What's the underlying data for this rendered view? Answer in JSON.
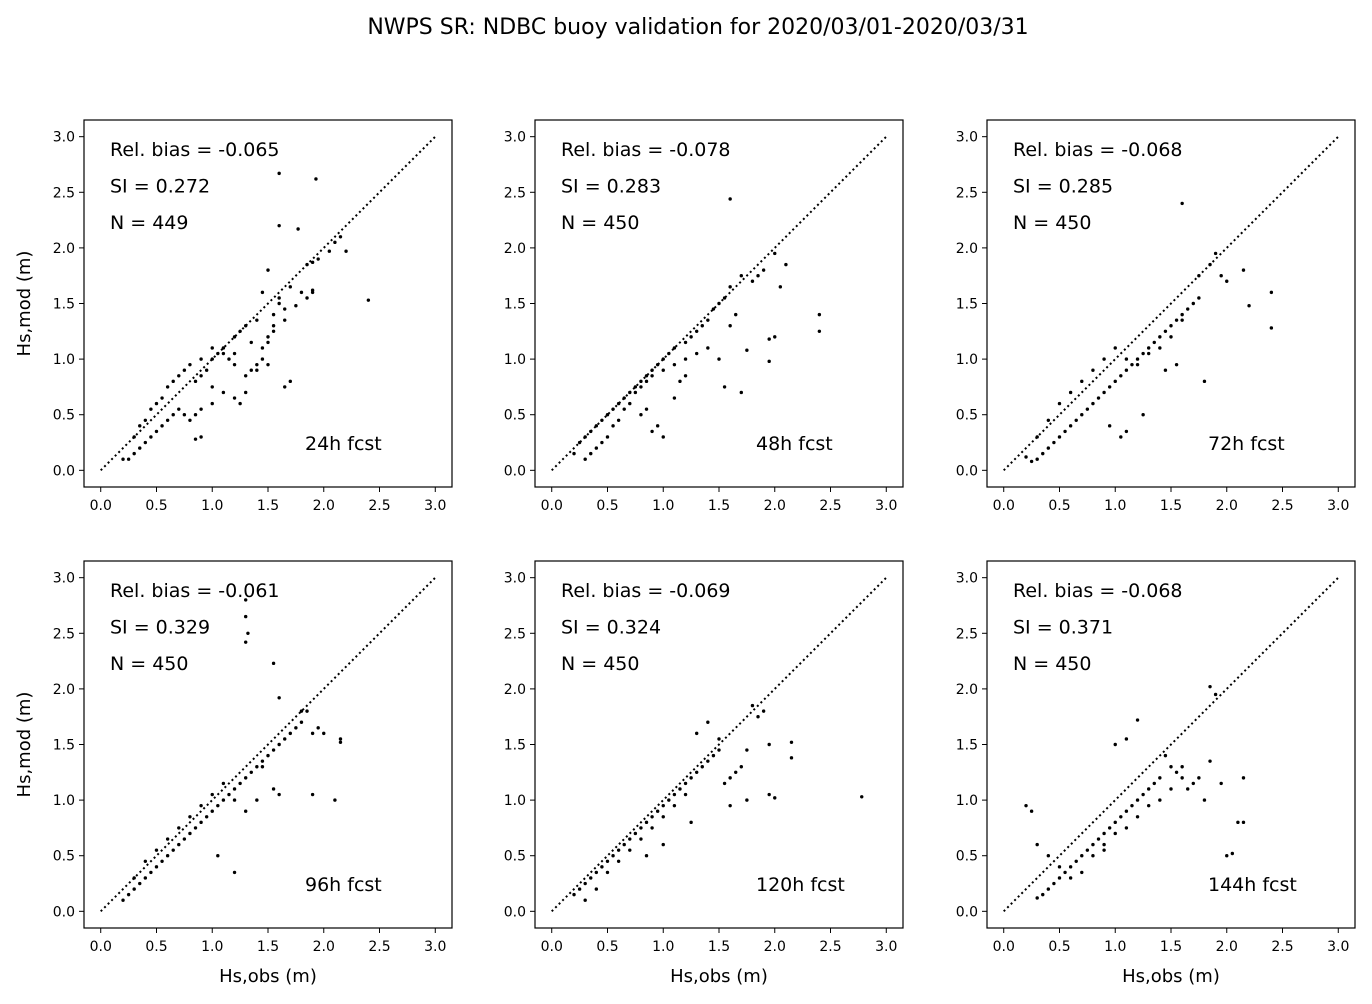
{
  "suptitle": "NWPS SR: NDBC buoy validation for 2020/03/01-2020/03/31",
  "chart_data": [
    {
      "type": "scatter",
      "fcst": "24h fcst",
      "stats": [
        "Rel. bias = -0.065",
        "SI =  0.272",
        "N = 449"
      ],
      "xlabel": "",
      "ylabel": "Hs,mod (m)",
      "xlim": [
        -0.15,
        3.15
      ],
      "ylim": [
        -0.15,
        3.15
      ],
      "ticks": [
        0,
        0.5,
        1,
        1.5,
        2,
        2.5,
        3
      ],
      "ticklabels": [
        "0.0",
        "0.5",
        "1.0",
        "1.5",
        "2.0",
        "2.5",
        "3.0"
      ],
      "x": [
        1.6,
        1.93,
        1.6,
        1.77,
        2.4,
        2.2,
        2.15,
        2.1,
        2.05,
        1.95,
        1.9,
        1.85,
        1.9,
        1.7,
        1.5,
        1.45,
        1.6,
        1.65,
        1.55,
        1.4,
        1.3,
        1.25,
        1.2,
        1.65,
        1.55,
        1.5,
        1.45,
        1.35,
        1.2,
        1.15,
        1.4,
        1.35,
        1.1,
        1.05,
        1.2,
        1.3,
        1.0,
        0.95,
        0.9,
        0.85,
        1.0,
        1.1,
        1.25,
        1.0,
        0.9,
        0.85,
        0.8,
        0.75,
        0.7,
        0.65,
        0.6,
        0.55,
        0.5,
        0.45,
        0.4,
        0.35,
        0.3,
        0.25,
        0.2,
        0.3,
        0.35,
        0.4,
        0.45,
        0.5,
        0.55,
        0.6,
        0.65,
        0.7,
        0.75,
        0.8,
        0.9,
        1.0,
        1.1,
        0.9,
        0.85,
        1.65,
        1.7,
        1.3,
        1.2,
        1.55,
        1.5,
        1.45,
        1.5,
        1.4,
        1.6,
        1.8,
        1.85,
        1.9,
        1.75
      ],
      "y": [
        2.67,
        2.62,
        2.2,
        2.17,
        1.53,
        1.97,
        2.1,
        2.05,
        1.97,
        1.9,
        1.87,
        1.85,
        1.6,
        1.65,
        1.8,
        1.6,
        1.55,
        1.45,
        1.4,
        1.35,
        1.3,
        1.25,
        1.2,
        1.35,
        1.3,
        1.2,
        1.1,
        1.15,
        1.05,
        1.0,
        0.95,
        0.9,
        1.1,
        1.05,
        0.95,
        0.85,
        1.0,
        0.9,
        0.85,
        0.8,
        0.75,
        0.7,
        0.6,
        0.6,
        0.55,
        0.5,
        0.45,
        0.5,
        0.55,
        0.5,
        0.45,
        0.4,
        0.35,
        0.3,
        0.25,
        0.2,
        0.15,
        0.1,
        0.1,
        0.3,
        0.4,
        0.45,
        0.55,
        0.6,
        0.65,
        0.75,
        0.8,
        0.85,
        0.9,
        0.95,
        1.0,
        1.1,
        1.05,
        0.3,
        0.28,
        0.75,
        0.8,
        0.7,
        0.65,
        1.25,
        1.15,
        1.0,
        0.95,
        0.9,
        1.5,
        1.6,
        1.55,
        1.62,
        1.48
      ]
    },
    {
      "type": "scatter",
      "fcst": "48h fcst",
      "stats": [
        "Rel. bias = -0.078",
        "SI =  0.283",
        "N = 450"
      ],
      "xlabel": "",
      "ylabel": "",
      "xlim": [
        -0.15,
        3.15
      ],
      "ylim": [
        -0.15,
        3.15
      ],
      "ticks": [
        0,
        0.5,
        1,
        1.5,
        2,
        2.5,
        3
      ],
      "ticklabels": [
        "0.0",
        "0.5",
        "1.0",
        "1.5",
        "2.0",
        "2.5",
        "3.0"
      ],
      "x": [
        1.6,
        2.4,
        2.4,
        2.0,
        1.95,
        2.1,
        1.9,
        1.85,
        2.05,
        1.8,
        1.7,
        1.6,
        1.55,
        1.5,
        1.45,
        1.65,
        1.6,
        1.4,
        1.35,
        1.3,
        1.25,
        1.2,
        1.1,
        1.05,
        1.0,
        0.95,
        0.9,
        0.85,
        0.8,
        0.75,
        0.7,
        0.65,
        0.6,
        0.55,
        0.5,
        0.45,
        0.4,
        0.35,
        0.3,
        0.25,
        0.2,
        0.3,
        0.35,
        0.4,
        0.45,
        0.5,
        0.55,
        0.6,
        0.65,
        0.7,
        0.75,
        0.8,
        0.85,
        0.9,
        1.0,
        1.1,
        1.2,
        1.3,
        1.4,
        1.5,
        1.55,
        1.7,
        1.75,
        1.95,
        2.0,
        0.9,
        0.95,
        1.0,
        0.8,
        0.85,
        1.1,
        1.15,
        1.2
      ],
      "y": [
        2.44,
        1.4,
        1.25,
        1.2,
        1.18,
        1.85,
        1.8,
        1.75,
        1.65,
        1.7,
        1.75,
        1.65,
        1.55,
        1.5,
        1.45,
        1.4,
        1.3,
        1.35,
        1.3,
        1.25,
        1.2,
        1.15,
        1.1,
        1.05,
        1.0,
        0.95,
        0.9,
        0.85,
        0.8,
        0.75,
        0.7,
        0.65,
        0.6,
        0.55,
        0.5,
        0.45,
        0.4,
        0.35,
        0.3,
        0.25,
        0.15,
        0.1,
        0.15,
        0.2,
        0.25,
        0.3,
        0.4,
        0.45,
        0.55,
        0.6,
        0.7,
        0.75,
        0.8,
        0.85,
        0.9,
        0.95,
        1.0,
        1.05,
        1.1,
        1.0,
        0.75,
        0.7,
        1.08,
        0.98,
        1.95,
        0.35,
        0.4,
        0.3,
        0.5,
        0.55,
        0.65,
        0.8,
        0.85
      ]
    },
    {
      "type": "scatter",
      "fcst": "72h fcst",
      "stats": [
        "Rel. bias = -0.068",
        "SI =  0.285",
        "N = 450"
      ],
      "xlabel": "",
      "ylabel": "",
      "xlim": [
        -0.15,
        3.15
      ],
      "ylim": [
        -0.15,
        3.15
      ],
      "ticks": [
        0,
        0.5,
        1,
        1.5,
        2,
        2.5,
        3
      ],
      "ticklabels": [
        "0.0",
        "0.5",
        "1.0",
        "1.5",
        "2.0",
        "2.5",
        "3.0"
      ],
      "x": [
        1.6,
        2.4,
        2.4,
        2.2,
        2.15,
        2.0,
        1.95,
        1.9,
        1.85,
        1.8,
        1.75,
        1.7,
        1.65,
        1.6,
        1.55,
        1.5,
        1.45,
        1.4,
        1.35,
        1.3,
        1.25,
        1.2,
        1.15,
        1.1,
        1.05,
        1.0,
        0.95,
        0.9,
        0.85,
        0.8,
        0.75,
        0.7,
        0.65,
        0.6,
        0.55,
        0.5,
        0.45,
        0.4,
        0.35,
        0.3,
        0.25,
        0.2,
        0.3,
        0.4,
        0.5,
        0.6,
        0.7,
        0.8,
        0.9,
        1.0,
        1.1,
        1.2,
        1.3,
        1.4,
        1.5,
        1.6,
        1.75,
        1.25,
        1.1,
        1.05,
        0.95,
        1.55,
        1.45
      ],
      "y": [
        2.4,
        1.6,
        1.28,
        1.48,
        1.8,
        1.7,
        1.75,
        1.95,
        1.85,
        0.8,
        1.55,
        1.5,
        1.45,
        1.4,
        1.35,
        1.3,
        1.25,
        1.2,
        1.15,
        1.1,
        1.05,
        1.0,
        0.95,
        0.9,
        0.85,
        0.8,
        0.75,
        0.7,
        0.65,
        0.6,
        0.55,
        0.5,
        0.45,
        0.4,
        0.35,
        0.3,
        0.25,
        0.2,
        0.15,
        0.1,
        0.08,
        0.12,
        0.3,
        0.45,
        0.6,
        0.7,
        0.8,
        0.9,
        1.0,
        1.1,
        1.0,
        0.95,
        1.05,
        1.1,
        1.2,
        1.35,
        1.75,
        0.5,
        0.35,
        0.3,
        0.4,
        0.95,
        0.9
      ]
    },
    {
      "type": "scatter",
      "fcst": "96h fcst",
      "stats": [
        "Rel. bias = -0.061",
        "SI =  0.329",
        "N = 450"
      ],
      "xlabel": "Hs,obs (m)",
      "ylabel": "Hs,mod (m)",
      "xlim": [
        -0.15,
        3.15
      ],
      "ylim": [
        -0.15,
        3.15
      ],
      "ticks": [
        0,
        0.5,
        1,
        1.5,
        2,
        2.5,
        3
      ],
      "ticklabels": [
        "0.0",
        "0.5",
        "1.0",
        "1.5",
        "2.0",
        "2.5",
        "3.0"
      ],
      "x": [
        1.3,
        1.3,
        1.32,
        1.3,
        1.55,
        1.6,
        2.15,
        2.1,
        2.15,
        2.0,
        1.95,
        1.9,
        1.85,
        1.8,
        1.75,
        1.7,
        1.65,
        1.6,
        1.55,
        1.5,
        1.45,
        1.4,
        1.35,
        1.3,
        1.25,
        1.2,
        1.15,
        1.1,
        1.05,
        1.0,
        0.95,
        0.9,
        0.85,
        0.8,
        0.75,
        0.7,
        0.65,
        0.6,
        0.55,
        0.5,
        0.45,
        0.4,
        0.35,
        0.3,
        0.25,
        0.2,
        0.3,
        0.4,
        0.5,
        0.6,
        0.7,
        0.8,
        0.9,
        1.0,
        1.1,
        1.2,
        1.3,
        1.4,
        1.45,
        1.55,
        1.6,
        1.8,
        1.9,
        1.05,
        1.2
      ],
      "y": [
        2.8,
        2.65,
        2.5,
        2.42,
        2.23,
        1.92,
        1.55,
        1.0,
        1.52,
        1.6,
        1.65,
        1.05,
        1.8,
        1.7,
        1.65,
        1.6,
        1.55,
        1.5,
        1.45,
        1.4,
        1.35,
        1.3,
        1.25,
        1.2,
        1.15,
        1.1,
        1.05,
        1.0,
        0.95,
        0.9,
        0.85,
        0.8,
        0.75,
        0.7,
        0.65,
        0.6,
        0.55,
        0.5,
        0.45,
        0.4,
        0.35,
        0.3,
        0.25,
        0.2,
        0.15,
        0.1,
        0.3,
        0.45,
        0.55,
        0.65,
        0.75,
        0.85,
        0.95,
        1.05,
        1.15,
        1.0,
        0.9,
        1.0,
        1.3,
        1.1,
        1.05,
        1.8,
        1.6,
        0.5,
        0.35
      ]
    },
    {
      "type": "scatter",
      "fcst": "120h fcst",
      "stats": [
        "Rel. bias = -0.069",
        "SI =  0.324",
        "N = 450"
      ],
      "xlabel": "Hs,obs (m)",
      "ylabel": "",
      "xlim": [
        -0.15,
        3.15
      ],
      "ylim": [
        -0.15,
        3.15
      ],
      "ticks": [
        0,
        0.5,
        1,
        1.5,
        2,
        2.5,
        3
      ],
      "ticklabels": [
        "0.0",
        "0.5",
        "1.0",
        "1.5",
        "2.0",
        "2.5",
        "3.0"
      ],
      "x": [
        2.78,
        2.15,
        2.15,
        2.0,
        1.95,
        1.9,
        1.85,
        1.8,
        1.75,
        1.7,
        1.65,
        1.6,
        1.55,
        1.5,
        1.45,
        1.4,
        1.35,
        1.3,
        1.25,
        1.2,
        1.15,
        1.1,
        1.05,
        1.0,
        0.95,
        0.9,
        0.85,
        0.8,
        0.75,
        0.7,
        0.65,
        0.6,
        0.55,
        0.5,
        0.45,
        0.4,
        0.35,
        0.3,
        0.25,
        0.2,
        0.3,
        0.4,
        0.5,
        0.6,
        0.7,
        0.8,
        0.9,
        1.0,
        1.1,
        1.2,
        1.3,
        1.4,
        1.5,
        1.6,
        1.75,
        1.95,
        1.25,
        1.0,
        0.85
      ],
      "y": [
        1.03,
        1.52,
        1.38,
        1.02,
        1.05,
        1.8,
        1.75,
        1.85,
        1.45,
        1.3,
        1.25,
        1.2,
        1.15,
        1.45,
        1.4,
        1.35,
        1.3,
        1.25,
        1.2,
        1.15,
        1.1,
        1.05,
        1.0,
        0.95,
        0.9,
        0.85,
        0.8,
        0.75,
        0.7,
        0.65,
        0.6,
        0.55,
        0.5,
        0.45,
        0.4,
        0.35,
        0.3,
        0.25,
        0.2,
        0.15,
        0.1,
        0.2,
        0.35,
        0.45,
        0.55,
        0.65,
        0.75,
        0.85,
        0.95,
        1.05,
        1.6,
        1.7,
        1.55,
        0.95,
        1.0,
        1.5,
        0.8,
        0.6,
        0.5
      ]
    },
    {
      "type": "scatter",
      "fcst": "144h fcst",
      "stats": [
        "Rel. bias = -0.068",
        "SI =  0.371",
        "N = 450"
      ],
      "xlabel": "Hs,obs (m)",
      "ylabel": "",
      "xlim": [
        -0.15,
        3.15
      ],
      "ylim": [
        -0.15,
        3.15
      ],
      "ticks": [
        0,
        0.5,
        1,
        1.5,
        2,
        2.5,
        3
      ],
      "ticklabels": [
        "0.0",
        "0.5",
        "1.0",
        "1.5",
        "2.0",
        "2.5",
        "3.0"
      ],
      "x": [
        1.85,
        1.9,
        2.15,
        2.15,
        2.1,
        2.05,
        2.0,
        1.95,
        1.8,
        1.75,
        1.7,
        1.65,
        1.6,
        1.55,
        1.5,
        1.45,
        1.4,
        1.35,
        1.3,
        1.25,
        1.2,
        1.15,
        1.1,
        1.05,
        1.0,
        0.95,
        0.9,
        0.85,
        0.8,
        0.75,
        0.7,
        0.65,
        0.6,
        0.55,
        0.5,
        0.45,
        0.4,
        0.35,
        0.3,
        0.25,
        0.2,
        0.3,
        0.4,
        0.5,
        0.6,
        0.7,
        0.8,
        0.9,
        1.0,
        1.1,
        1.2,
        1.3,
        1.4,
        1.5,
        1.6,
        1.85,
        1.2,
        1.1,
        1.0,
        0.9
      ],
      "y": [
        2.02,
        1.95,
        1.2,
        0.8,
        0.8,
        0.52,
        0.5,
        1.15,
        1.0,
        1.2,
        1.15,
        1.1,
        1.3,
        1.25,
        1.3,
        1.4,
        1.2,
        1.15,
        1.1,
        1.05,
        1.0,
        0.95,
        0.9,
        0.85,
        0.8,
        0.75,
        0.7,
        0.65,
        0.6,
        0.55,
        0.5,
        0.45,
        0.4,
        0.35,
        0.3,
        0.25,
        0.2,
        0.15,
        0.12,
        0.9,
        0.95,
        0.6,
        0.5,
        0.4,
        0.3,
        0.35,
        0.5,
        0.6,
        0.7,
        0.75,
        0.85,
        0.95,
        1.0,
        1.1,
        1.2,
        1.35,
        1.72,
        1.55,
        1.5,
        0.55
      ]
    }
  ]
}
